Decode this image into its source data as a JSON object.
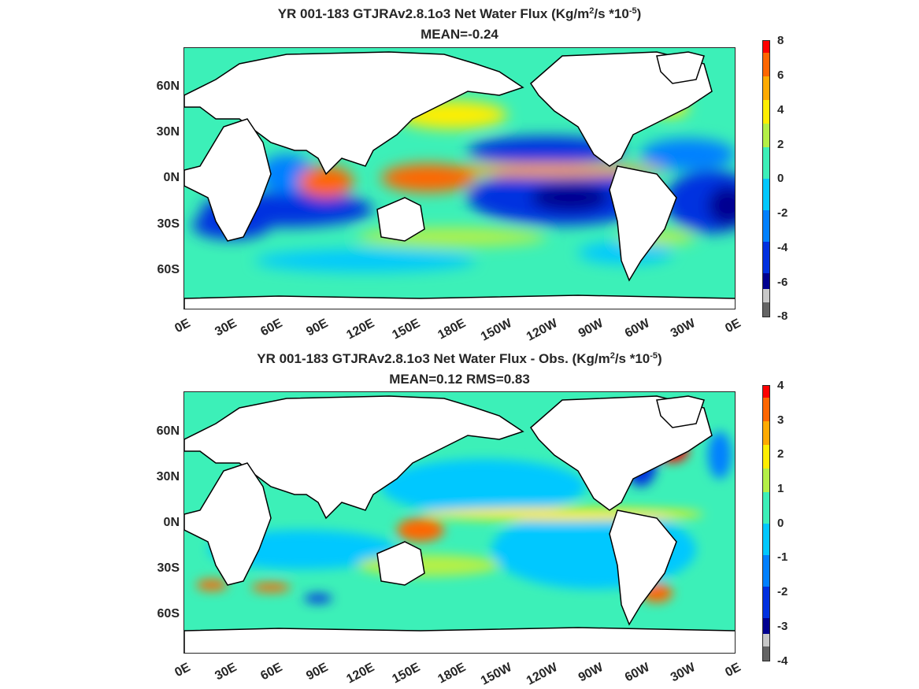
{
  "panels": [
    {
      "id": "top",
      "title_prefix": "YR 001-183 GTJRAv2.8.1o3  Net Water Flux (Kg/m",
      "title_sup1": "2",
      "title_mid": "/s *10",
      "title_sup2": "-5",
      "title_suffix": ")",
      "subtitle": "MEAN=-0.24",
      "lat_labels": [
        "60N",
        "30N",
        "0N",
        "30S",
        "60S"
      ],
      "lon_labels": [
        "0E",
        "30E",
        "60E",
        "90E",
        "120E",
        "150E",
        "180E",
        "150W",
        "120W",
        "90W",
        "60W",
        "30W",
        "0E"
      ],
      "colorbar_ticks": [
        "8",
        "6",
        "4",
        "2",
        "0",
        "-2",
        "-4",
        "-6",
        "-8"
      ],
      "colorbar_range": [
        -8,
        8
      ]
    },
    {
      "id": "bottom",
      "title_prefix": "YR 001-183 GTJRAv2.8.1o3  Net Water Flux - Obs. (Kg/m",
      "title_sup1": "2",
      "title_mid": "/s *10",
      "title_sup2": "-5",
      "title_suffix": ")",
      "subtitle": "MEAN=0.12 RMS=0.83",
      "lat_labels": [
        "60N",
        "30N",
        "0N",
        "30S",
        "60S"
      ],
      "lon_labels": [
        "0E",
        "30E",
        "60E",
        "90E",
        "120E",
        "150E",
        "180E",
        "150W",
        "120W",
        "90W",
        "60W",
        "30W",
        "0E"
      ],
      "colorbar_ticks": [
        "4",
        "3",
        "2",
        "1",
        "0",
        "-1",
        "-2",
        "-3",
        "-4"
      ],
      "colorbar_range": [
        -4,
        4
      ]
    }
  ],
  "colors": {
    "ocean_base": "#3cf0b8",
    "land": "#ffffff",
    "coast": "#000000",
    "colormap_top": [
      "#ff0000",
      "#ff6600",
      "#ffaa00",
      "#ffee00",
      "#b4f046",
      "#3cf0b8",
      "#00c8ff",
      "#0080ff",
      "#0030e0",
      "#000090",
      "#c8c8c8",
      "#646464"
    ]
  }
}
